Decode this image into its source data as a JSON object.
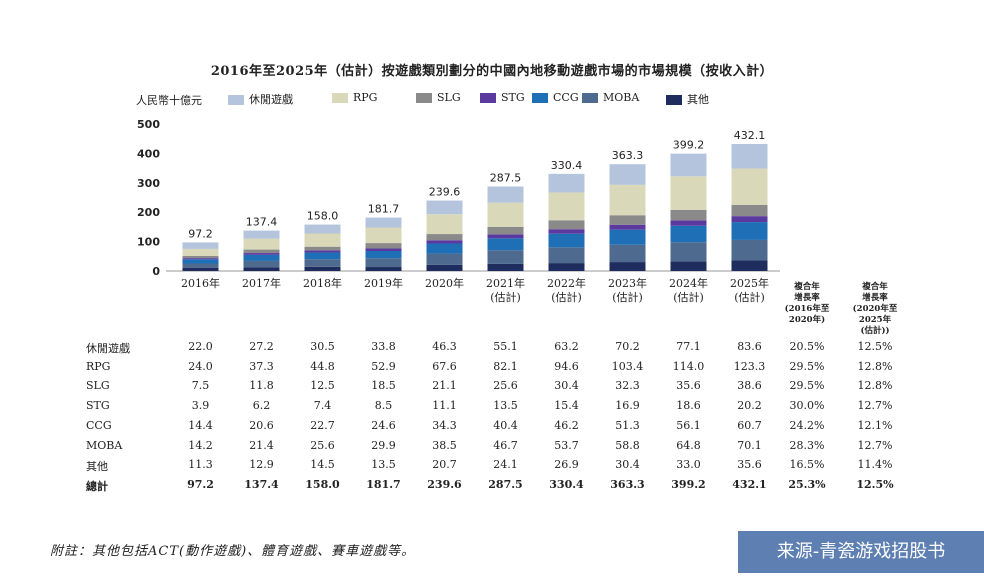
{
  "chart_data": {
    "type": "bar",
    "stacked": true,
    "title": "2016年至2025年（估計）按遊戲類別劃分的中國內地移動遊戲市場的市場規模（按收入計）",
    "ylabel": "人民幣十億元",
    "ylim": [
      0,
      500
    ],
    "yticks": [
      0,
      100,
      200,
      300,
      400,
      500
    ],
    "categories": [
      {
        "line1": "2016年",
        "line2": ""
      },
      {
        "line1": "2017年",
        "line2": ""
      },
      {
        "line1": "2018年",
        "line2": ""
      },
      {
        "line1": "2019年",
        "line2": ""
      },
      {
        "line1": "2020年",
        "line2": ""
      },
      {
        "line1": "2021年",
        "line2": "(估計)"
      },
      {
        "line1": "2022年",
        "line2": "(估計)"
      },
      {
        "line1": "2023年",
        "line2": "(估計)"
      },
      {
        "line1": "2024年",
        "line2": "(估計)"
      },
      {
        "line1": "2025年",
        "line2": "(估計)"
      }
    ],
    "series": [
      {
        "name": "其他",
        "table_label": "其他",
        "color": "#1f2d5e",
        "values": [
          11.3,
          12.9,
          14.5,
          13.5,
          20.7,
          24.1,
          26.9,
          30.4,
          33.0,
          35.6
        ],
        "cagr1": "16.5%",
        "cagr2": "11.4%"
      },
      {
        "name": "MOBA",
        "table_label": "MOBA",
        "color": "#4e6a8e",
        "values": [
          14.2,
          21.4,
          25.6,
          29.9,
          38.5,
          46.7,
          53.7,
          58.8,
          64.8,
          70.1
        ],
        "cagr1": "28.3%",
        "cagr2": "12.7%"
      },
      {
        "name": "CCG",
        "table_label": "CCG",
        "color": "#1f6fb6",
        "values": [
          14.4,
          20.6,
          22.7,
          24.6,
          34.3,
          40.4,
          46.2,
          51.3,
          56.1,
          60.7
        ],
        "cagr1": "24.2%",
        "cagr2": "12.1%"
      },
      {
        "name": "STG",
        "table_label": "STG",
        "color": "#5b3aa0",
        "values": [
          3.9,
          6.2,
          7.4,
          8.5,
          11.1,
          13.5,
          15.4,
          16.9,
          18.6,
          20.2
        ],
        "cagr1": "30.0%",
        "cagr2": "12.7%"
      },
      {
        "name": "SLG",
        "table_label": "SLG",
        "color": "#8a8a8a",
        "values": [
          7.5,
          11.8,
          12.5,
          18.5,
          21.1,
          25.6,
          30.4,
          32.3,
          35.6,
          38.6
        ],
        "cagr1": "29.5%",
        "cagr2": "12.8%"
      },
      {
        "name": "RPG",
        "table_label": "RPG",
        "color": "#d9d9b9",
        "values": [
          24.0,
          37.3,
          44.8,
          52.9,
          67.6,
          82.1,
          94.6,
          103.4,
          114.0,
          123.3
        ],
        "cagr1": "29.5%",
        "cagr2": "12.8%"
      },
      {
        "name": "休閒遊戲",
        "table_label": "休閒遊戲",
        "color": "#b4c4dd",
        "values": [
          22.0,
          27.2,
          30.5,
          33.8,
          46.3,
          55.1,
          63.2,
          70.2,
          77.1,
          83.6
        ],
        "cagr1": "20.5%",
        "cagr2": "12.5%"
      }
    ],
    "legend_order": [
      "休閒遊戲",
      "RPG",
      "SLG",
      "STG",
      "CCG",
      "MOBA",
      "其他"
    ],
    "table_order": [
      "休閒遊戲",
      "RPG",
      "SLG",
      "STG",
      "CCG",
      "MOBA",
      "其他"
    ],
    "totals": {
      "label": "總計",
      "values": [
        "97.2",
        "137.4",
        "158.0",
        "181.7",
        "239.6",
        "287.5",
        "330.4",
        "363.3",
        "399.2",
        "432.1"
      ],
      "cagr1": "25.3%",
      "cagr2": "12.5%"
    },
    "cagr_headers": [
      [
        "複合年",
        "增長率",
        "(2016年至",
        "2020年)"
      ],
      [
        "複合年",
        "增長率",
        "(2020年至",
        "2025年",
        "(估計))"
      ]
    ]
  },
  "footnote": "附註：其他包括ACT(動作遊戲)、體育遊戲、賽車遊戲等。",
  "source_badge": "来源-青瓷游戏招股书"
}
